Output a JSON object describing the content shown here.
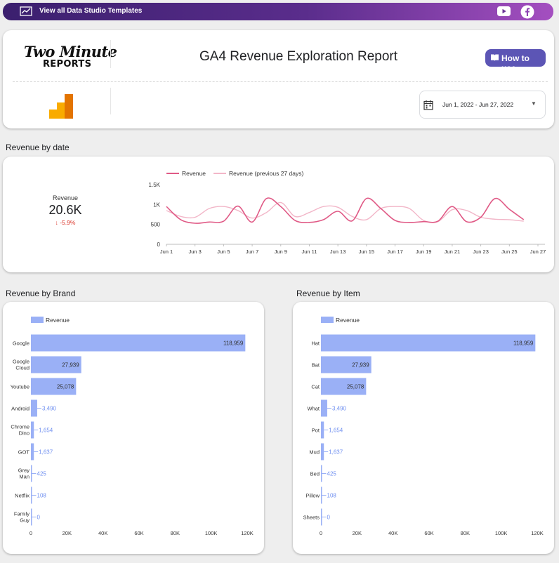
{
  "topbar": {
    "link_label": "View all Data Studio Templates",
    "icons": [
      "chart-icon",
      "youtube-icon",
      "facebook-icon"
    ],
    "background_gradient": [
      "#3b1f6e",
      "#a44fc0"
    ]
  },
  "header": {
    "logo_line1": "Two Minute",
    "logo_line2": "REPORTS",
    "title": "GA4 Revenue Exploration Report",
    "how_to_label": "How to use",
    "how_to_color": "#5c55b5",
    "date_range": "Jun 1, 2022 - Jun 27, 2022"
  },
  "sections": {
    "by_date": "Revenue by date",
    "by_brand": "Revenue by Brand",
    "by_item": "Revenue by Item"
  },
  "kpi": {
    "label": "Revenue",
    "value": "20.6K",
    "delta": "-5.9%",
    "delta_arrow": "↓",
    "delta_color": "#d93025"
  },
  "chart_data": [
    {
      "type": "line",
      "legend": [
        "Revenue",
        "Revenue (previous 27 days)"
      ],
      "x": [
        "Jun 1",
        "Jun 2",
        "Jun 3",
        "Jun 4",
        "Jun 5",
        "Jun 6",
        "Jun 7",
        "Jun 8",
        "Jun 9",
        "Jun 10",
        "Jun 11",
        "Jun 12",
        "Jun 13",
        "Jun 14",
        "Jun 15",
        "Jun 16",
        "Jun 17",
        "Jun 18",
        "Jun 19",
        "Jun 20",
        "Jun 21",
        "Jun 22",
        "Jun 23",
        "Jun 24",
        "Jun 25",
        "Jun 26"
      ],
      "x_tick_labels": [
        "Jun 1",
        "Jun 3",
        "Jun 5",
        "Jun 7",
        "Jun 9",
        "Jun 11",
        "Jun 13",
        "Jun 15",
        "Jun 17",
        "Jun 19",
        "Jun 21",
        "Jun 23",
        "Jun 25",
        "Jun 27"
      ],
      "y_ticks": [
        "0",
        "500",
        "1K",
        "1.5K"
      ],
      "ylim": [
        0,
        1500
      ],
      "series": [
        {
          "name": "Revenue",
          "color": "#e05a86",
          "values": [
            950,
            620,
            530,
            560,
            580,
            960,
            560,
            1150,
            950,
            600,
            550,
            620,
            830,
            590,
            1150,
            900,
            600,
            550,
            570,
            580,
            950,
            570,
            680,
            1150,
            880,
            620
          ]
        },
        {
          "name": "Revenue (previous 27 days)",
          "color": "#f2b6c8",
          "values": [
            850,
            700,
            680,
            900,
            950,
            850,
            660,
            800,
            1050,
            700,
            800,
            950,
            930,
            700,
            620,
            900,
            950,
            900,
            600,
            570,
            870,
            850,
            680,
            630,
            620,
            580
          ]
        }
      ]
    },
    {
      "type": "bar",
      "orientation": "horizontal",
      "legend": [
        "Revenue"
      ],
      "color": "#9ab0f6",
      "categories": [
        "Google",
        "Google Cloud",
        "Youtube",
        "Android",
        "Chrome Dino",
        "GOT",
        "Grey Man",
        "Netflix",
        "Family Guy"
      ],
      "values": [
        118959,
        27939,
        25078,
        3490,
        1654,
        1637,
        425,
        108,
        0
      ],
      "value_labels": [
        "118,959",
        "27,939",
        "25,078",
        "3,490",
        "1,654",
        "1,637",
        "425",
        "108",
        "0"
      ],
      "x_tick_labels": [
        "0",
        "20K",
        "40K",
        "60K",
        "80K",
        "100K",
        "120K"
      ],
      "xlim": [
        0,
        120000
      ]
    },
    {
      "type": "bar",
      "orientation": "horizontal",
      "legend": [
        "Revenue"
      ],
      "color": "#9ab0f6",
      "categories": [
        "Hat",
        "Bat",
        "Cat",
        "What",
        "Pot",
        "Mud",
        "Bed",
        "Pillow",
        "Sheets"
      ],
      "values": [
        118959,
        27939,
        25078,
        3490,
        1654,
        1637,
        425,
        108,
        0
      ],
      "value_labels": [
        "118,959",
        "27,939",
        "25,078",
        "3,490",
        "1,654",
        "1,637",
        "425",
        "108",
        "0"
      ],
      "x_tick_labels": [
        "0",
        "20K",
        "40K",
        "60K",
        "80K",
        "100K",
        "120K"
      ],
      "xlim": [
        0,
        120000
      ]
    }
  ]
}
